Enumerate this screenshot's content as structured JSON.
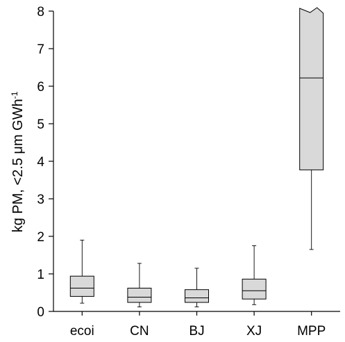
{
  "chart_data": {
    "type": "box",
    "categories": [
      "ecoi",
      "CN",
      "BJ",
      "XJ",
      "MPP"
    ],
    "boxes": [
      {
        "category": "ecoi",
        "whisker_low": 0.22,
        "q1": 0.4,
        "median": 0.62,
        "q3": 0.94,
        "whisker_high": 1.9
      },
      {
        "category": "CN",
        "whisker_low": 0.12,
        "q1": 0.24,
        "median": 0.38,
        "q3": 0.62,
        "whisker_high": 1.28
      },
      {
        "category": "BJ",
        "whisker_low": 0.12,
        "q1": 0.24,
        "median": 0.36,
        "q3": 0.58,
        "whisker_high": 1.15
      },
      {
        "category": "XJ",
        "whisker_low": 0.18,
        "q1": 0.33,
        "median": 0.55,
        "q3": 0.86,
        "whisker_high": 1.75
      },
      {
        "category": "MPP",
        "whisker_low": 1.65,
        "q1": 3.77,
        "median": 6.22,
        "q3": 8.0,
        "whisker_high": null,
        "truncated_top": true
      }
    ],
    "ylabel": "kg PM, <2.5 μm GWh",
    "ylabel_superscript": "-1",
    "ylim": [
      0,
      8
    ],
    "yticks": [
      "0",
      "1",
      "2",
      "3",
      "4",
      "5",
      "6",
      "7",
      "8"
    ],
    "grid": false,
    "legend": "none",
    "colors": {
      "box_fill": "#d9d9d9",
      "stroke": "#000000"
    }
  }
}
